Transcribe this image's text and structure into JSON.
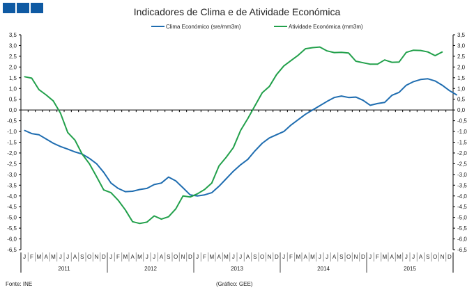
{
  "chart_data": {
    "type": "line",
    "title": "Indicadores de Clima e de Atividade Económica",
    "source": "Fonte: INE",
    "credit": "(Gráfico: GEE)",
    "ylim": [
      -6.5,
      3.5
    ],
    "ytick_step": 0.5,
    "yticks": [
      "3,5",
      "3,0",
      "2,5",
      "2,0",
      "1,5",
      "1,0",
      "0,5",
      "0,0",
      "-0,5",
      "-1,0",
      "-1,5",
      "-2,0",
      "-2,5",
      "-3,0",
      "-3,5",
      "-4,0",
      "-4,5",
      "-5,0",
      "-5,5",
      "-6,0",
      "-6,5"
    ],
    "month_labels": [
      "J",
      "F",
      "M",
      "A",
      "M",
      "J",
      "J",
      "A",
      "S",
      "O",
      "N",
      "D"
    ],
    "years": [
      "2011",
      "2012",
      "2013",
      "2014",
      "2015"
    ],
    "legend_position": "top",
    "series": [
      {
        "name": "Clima Económico (sre/mm3m)",
        "color": "#1f6db0",
        "values": [
          -0.95,
          -1.1,
          -1.15,
          -1.35,
          -1.55,
          -1.7,
          -1.82,
          -1.95,
          -2.05,
          -2.25,
          -2.5,
          -2.9,
          -3.4,
          -3.65,
          -3.8,
          -3.78,
          -3.7,
          -3.65,
          -3.47,
          -3.4,
          -3.12,
          -3.3,
          -3.62,
          -3.95,
          -4.0,
          -3.95,
          -3.85,
          -3.55,
          -3.2,
          -2.85,
          -2.55,
          -2.3,
          -1.9,
          -1.55,
          -1.3,
          -1.15,
          -1.0,
          -0.7,
          -0.45,
          -0.2,
          0.0,
          0.2,
          0.4,
          0.58,
          0.65,
          0.58,
          0.6,
          0.45,
          0.22,
          0.3,
          0.35,
          0.68,
          0.82,
          1.15,
          1.32,
          1.42,
          1.45,
          1.35,
          1.15,
          0.9,
          0.7
        ]
      },
      {
        "name": "Atividade Económica (mm3m)",
        "color": "#22a04b",
        "values": [
          1.55,
          1.48,
          0.95,
          0.7,
          0.42,
          -0.15,
          -1.05,
          -1.4,
          -2.05,
          -2.5,
          -3.1,
          -3.72,
          -3.85,
          -4.2,
          -4.65,
          -5.2,
          -5.28,
          -5.22,
          -4.93,
          -5.08,
          -4.97,
          -4.6,
          -4.0,
          -4.05,
          -3.9,
          -3.7,
          -3.4,
          -2.6,
          -2.2,
          -1.75,
          -0.95,
          -0.4,
          0.2,
          0.8,
          1.1,
          1.65,
          2.05,
          2.3,
          2.55,
          2.85,
          2.9,
          2.93,
          2.75,
          2.67,
          2.68,
          2.65,
          2.27,
          2.2,
          2.13,
          2.13,
          2.33,
          2.22,
          2.23,
          2.68,
          2.78,
          2.77,
          2.7,
          2.53,
          2.7
        ]
      }
    ]
  }
}
